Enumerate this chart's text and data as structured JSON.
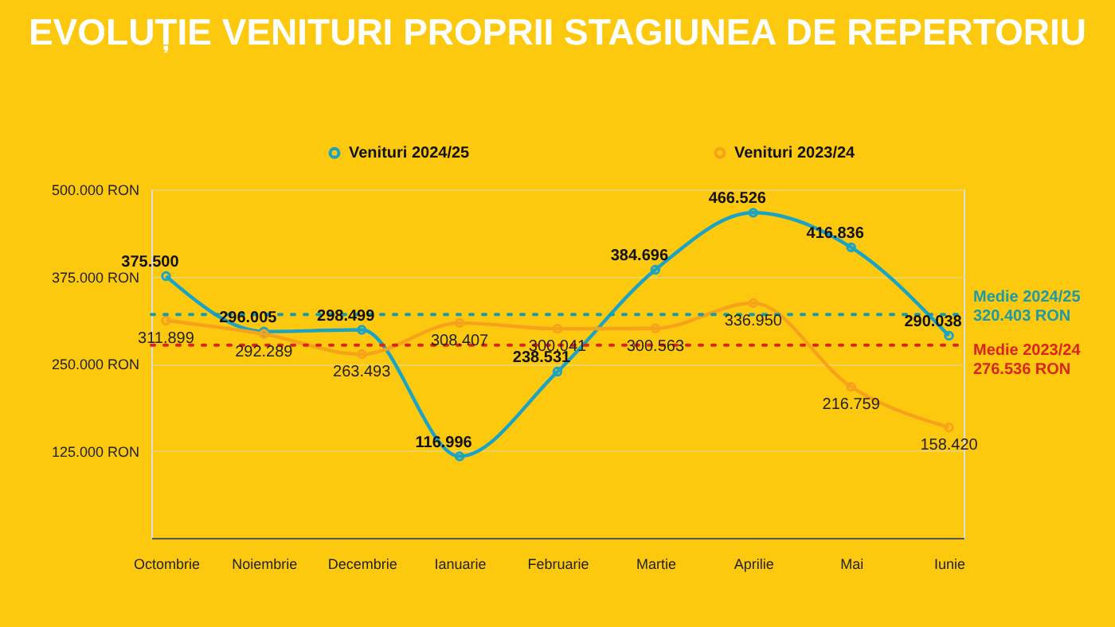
{
  "chart_data": {
    "type": "line",
    "title": "EVOLUȚIE VENITURI PROPRII STAGIUNEA DE REPERTORIU",
    "categories": [
      "Octombrie",
      "Noiembrie",
      "Decembrie",
      "Ianuarie",
      "Februarie",
      "Martie",
      "Aprilie",
      "Mai",
      "Iunie"
    ],
    "series": [
      {
        "name": "Venituri 2024/25",
        "color": "#1ba3c6",
        "values": [
          375500,
          296005,
          298499,
          116996,
          238531,
          384696,
          466526,
          416836,
          290038
        ],
        "value_labels": [
          "375.500",
          "296.005",
          "298.499",
          "116.996",
          "238.531",
          "384.696",
          "466.526",
          "416.836",
          "290.038"
        ]
      },
      {
        "name": "Venituri 2023/24",
        "color": "#f7a21b",
        "values": [
          311899,
          292289,
          263493,
          308407,
          300041,
          300563,
          336950,
          216759,
          158420
        ],
        "value_labels": [
          "311.899",
          "292.289",
          "263.493",
          "308.407",
          "300.041",
          "300.563",
          "336.950",
          "216.759",
          "158.420"
        ]
      }
    ],
    "ylim": [
      0,
      500000
    ],
    "yticks": [
      {
        "value": 0,
        "label": null
      },
      {
        "value": 125000,
        "label": "125.000 RON"
      },
      {
        "value": 250000,
        "label": "250.000 RON"
      },
      {
        "value": 375000,
        "label": "375.000 RON"
      },
      {
        "value": 500000,
        "label": "500.000 RON"
      }
    ],
    "ref_lines": [
      {
        "axis": "y",
        "value": 320403,
        "label": "Medie 2024/25\n320.403 RON",
        "color": "#1b9aaa",
        "line_style": "dotted"
      },
      {
        "axis": "y",
        "value": 276536,
        "label": "Medie 2023/24\n276.536 RON",
        "color": "#d9261c",
        "line_style": "dotted"
      }
    ],
    "grid": "y",
    "legend": "top",
    "marker": "circle",
    "line_style": "solid"
  }
}
